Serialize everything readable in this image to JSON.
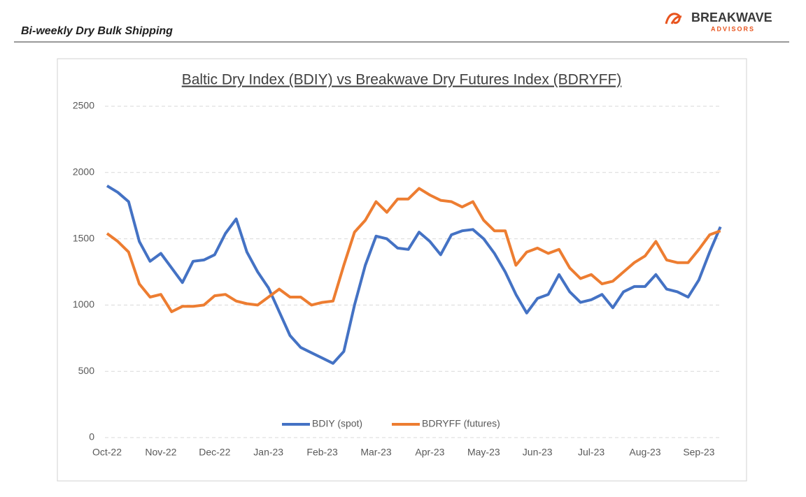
{
  "header": {
    "title": "Bi-weekly Dry Bulk Shipping",
    "logo_name": "BREAKWAVE",
    "logo_sub": "ADVISORS"
  },
  "chart_data": {
    "type": "line",
    "title": "Baltic Dry Index (BDIY) vs Breakwave Dry Futures Index (BDRYFF)",
    "x": [
      0,
      0.2,
      0.4,
      0.6,
      0.8,
      1,
      1.2,
      1.4,
      1.6,
      1.8,
      2,
      2.2,
      2.4,
      2.6,
      2.8,
      3,
      3.2,
      3.4,
      3.6,
      3.8,
      4,
      4.2,
      4.4,
      4.6,
      4.8,
      5,
      5.2,
      5.4,
      5.6,
      5.8,
      6,
      6.2,
      6.4,
      6.6,
      6.8,
      7,
      7.2,
      7.4,
      7.6,
      7.8,
      8,
      8.2,
      8.4,
      8.6,
      8.8,
      9,
      9.2,
      9.4,
      9.6,
      9.8,
      10,
      10.2,
      10.4,
      10.6,
      10.8,
      11,
      11.2,
      11.4
    ],
    "series": [
      {
        "name": "BDIY (spot)",
        "color": "#4472c4",
        "values": [
          1900,
          1850,
          1780,
          1480,
          1330,
          1390,
          1280,
          1170,
          1330,
          1340,
          1380,
          1540,
          1650,
          1400,
          1250,
          1130,
          950,
          770,
          680,
          640,
          600,
          560,
          650,
          1000,
          1300,
          1520,
          1500,
          1430,
          1420,
          1550,
          1480,
          1380,
          1530,
          1560,
          1570,
          1500,
          1390,
          1250,
          1080,
          940,
          1050,
          1080,
          1230,
          1100,
          1020,
          1040,
          1080,
          980,
          1100,
          1140,
          1140,
          1230,
          1120,
          1100,
          1060,
          1190,
          1400,
          1590
        ]
      },
      {
        "name": "BDRYFF (futures)",
        "color": "#ed7d31",
        "values": [
          1540,
          1480,
          1400,
          1160,
          1060,
          1080,
          950,
          990,
          990,
          1000,
          1070,
          1080,
          1030,
          1010,
          1000,
          1060,
          1120,
          1060,
          1060,
          1000,
          1020,
          1030,
          1300,
          1550,
          1640,
          1780,
          1700,
          1800,
          1800,
          1880,
          1830,
          1790,
          1780,
          1740,
          1780,
          1640,
          1560,
          1560,
          1300,
          1400,
          1430,
          1390,
          1420,
          1280,
          1200,
          1230,
          1160,
          1180,
          1250,
          1320,
          1370,
          1480,
          1340,
          1320,
          1320,
          1420,
          1530,
          1560
        ]
      }
    ],
    "xlim": [
      0,
      11.4
    ],
    "xticks": [
      {
        "value": 0,
        "label": "Oct-22"
      },
      {
        "value": 1,
        "label": "Nov-22"
      },
      {
        "value": 2,
        "label": "Dec-22"
      },
      {
        "value": 3,
        "label": "Jan-23"
      },
      {
        "value": 4,
        "label": "Feb-23"
      },
      {
        "value": 5,
        "label": "Mar-23"
      },
      {
        "value": 6,
        "label": "Apr-23"
      },
      {
        "value": 7,
        "label": "May-23"
      },
      {
        "value": 8,
        "label": "Jun-23"
      },
      {
        "value": 9,
        "label": "Jul-23"
      },
      {
        "value": 10,
        "label": "Aug-23"
      },
      {
        "value": 11,
        "label": "Sep-23"
      }
    ],
    "ylim": [
      0,
      2500
    ],
    "yticks": [
      0,
      500,
      1000,
      1500,
      2000,
      2500
    ],
    "grid": true,
    "legend": "bottom"
  }
}
